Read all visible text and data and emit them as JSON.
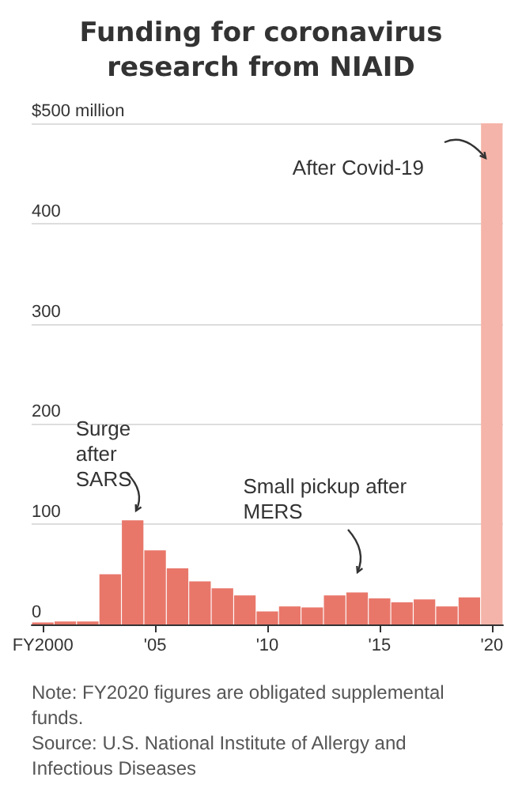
{
  "chart_data": {
    "type": "bar",
    "title": "Funding for coronavirus research from NIAID",
    "categories": [
      "FY2000",
      null,
      null,
      null,
      null,
      "'05",
      null,
      null,
      null,
      null,
      "'10",
      null,
      null,
      null,
      null,
      "'15",
      null,
      null,
      null,
      null,
      "'20"
    ],
    "values": [
      2,
      3,
      3,
      50,
      104,
      74,
      56,
      43,
      36,
      29,
      13,
      18,
      17,
      29,
      32,
      26,
      22,
      25,
      18,
      27,
      500
    ],
    "colors": [
      "#e8776a",
      "#e8776a",
      "#e8776a",
      "#e8776a",
      "#e8776a",
      "#e8776a",
      "#e8776a",
      "#e8776a",
      "#e8776a",
      "#e8776a",
      "#e8776a",
      "#e8776a",
      "#e8776a",
      "#e8776a",
      "#e8776a",
      "#e8776a",
      "#e8776a",
      "#e8776a",
      "#e8776a",
      "#e8776a",
      "#f5b4a9"
    ],
    "ylim": [
      0,
      500
    ],
    "yticks": [
      0,
      100,
      200,
      300,
      400,
      {
        "value": 500,
        "label": "$500 million"
      }
    ],
    "grid": "y",
    "annotations": [
      "Surge after SARS",
      "Small pickup after MERS",
      "After Covid-19",
      "Note: FY2020 figures are obligated supplemental funds.",
      "Source: U.S. National Institute of Allergy and Infectious Diseases"
    ]
  }
}
